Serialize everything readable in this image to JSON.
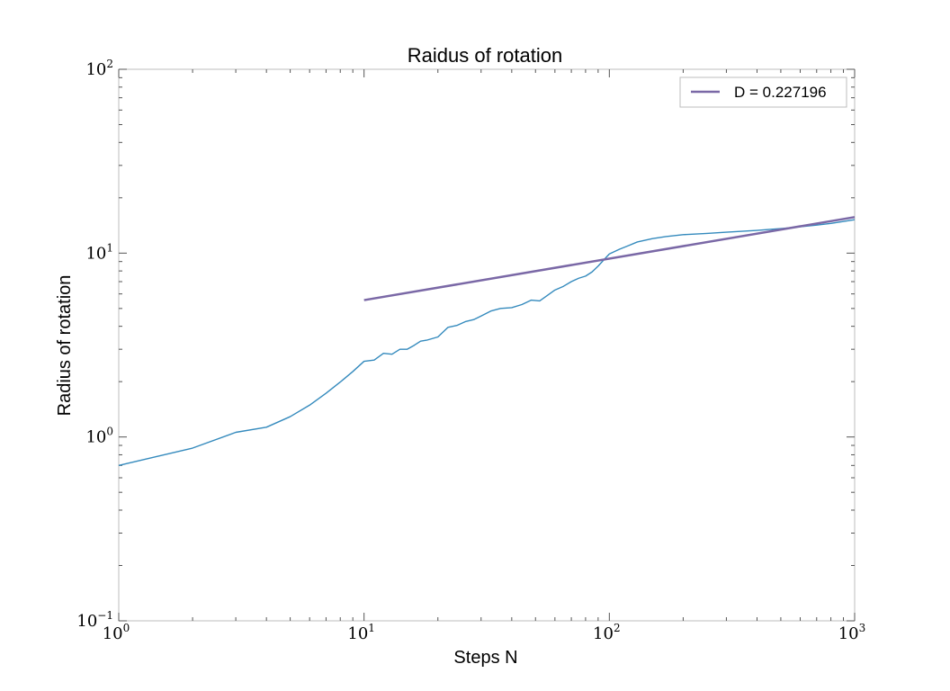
{
  "chart_data": {
    "type": "line",
    "title": "Raidus of rotation",
    "xlabel": "Steps N",
    "ylabel": "Radius of rotation",
    "xscale": "log",
    "yscale": "log",
    "xlim": [
      1,
      1000
    ],
    "ylim": [
      0.1,
      100
    ],
    "grid": false,
    "legend_position": "top-right",
    "x_ticks": [
      {
        "base": "10",
        "exp": "0"
      },
      {
        "base": "10",
        "exp": "1"
      },
      {
        "base": "10",
        "exp": "2"
      },
      {
        "base": "10",
        "exp": "3"
      }
    ],
    "y_ticks": [
      {
        "base": "10",
        "exp": "−1"
      },
      {
        "base": "10",
        "exp": "0"
      },
      {
        "base": "10",
        "exp": "1"
      },
      {
        "base": "10",
        "exp": "2"
      }
    ],
    "series": [
      {
        "color": "#348abd",
        "x": [
          1,
          2,
          3,
          4,
          5,
          6,
          7,
          8,
          9,
          10,
          11,
          12,
          13,
          14,
          15,
          16,
          17,
          18,
          20,
          22,
          24,
          26,
          28,
          30,
          33,
          36,
          40,
          44,
          48,
          52,
          56,
          60,
          65,
          70,
          75,
          80,
          85,
          90,
          95,
          100,
          110,
          120,
          130,
          150,
          170,
          200,
          250,
          300,
          400,
          500,
          600,
          700,
          800,
          1000
        ],
        "y": [
          0.7,
          0.87,
          1.06,
          1.13,
          1.29,
          1.49,
          1.73,
          1.99,
          2.27,
          2.58,
          2.62,
          2.85,
          2.82,
          3.0,
          3.0,
          3.15,
          3.32,
          3.36,
          3.5,
          3.95,
          4.05,
          4.25,
          4.35,
          4.55,
          4.85,
          5.0,
          5.05,
          5.25,
          5.55,
          5.5,
          5.9,
          6.3,
          6.6,
          7.0,
          7.3,
          7.5,
          7.9,
          8.5,
          9.2,
          9.9,
          10.5,
          11.0,
          11.5,
          12.0,
          12.3,
          12.6,
          12.8,
          13.0,
          13.3,
          13.6,
          13.9,
          14.2,
          14.5,
          15.2
        ]
      },
      {
        "name": "D = 0.227196",
        "color": "#7a68a6",
        "x": [
          10,
          1000
        ],
        "y": [
          5.55,
          15.7
        ]
      }
    ]
  }
}
